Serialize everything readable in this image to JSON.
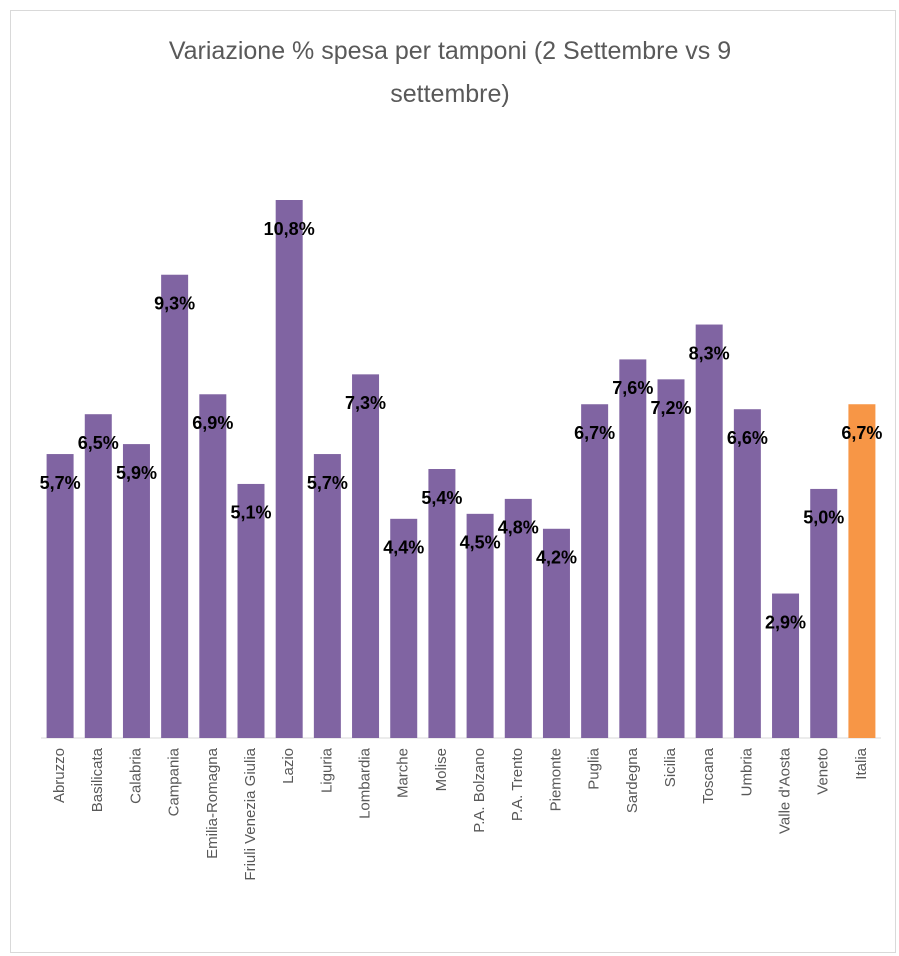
{
  "chart_data": {
    "type": "bar",
    "title": "Variazione % spesa per tamponi (2 Settembre vs 9 settembre)",
    "categories": [
      "Abruzzo",
      "Basilicata",
      "Calabria",
      "Campania",
      "Emilia-Romagna",
      "Friuli Venezia Giulia",
      "Lazio",
      "Liguria",
      "Lombardia",
      "Marche",
      "Molise",
      "P.A. Bolzano",
      "P.A. Trento",
      "Piemonte",
      "Puglia",
      "Sardegna",
      "Sicilia",
      "Toscana",
      "Umbria",
      "Valle d'Aosta",
      "Veneto",
      "Italia"
    ],
    "values": [
      5.7,
      6.5,
      5.9,
      9.3,
      6.9,
      5.1,
      10.8,
      5.7,
      7.3,
      4.4,
      5.4,
      4.5,
      4.8,
      4.2,
      6.7,
      7.6,
      7.2,
      8.3,
      6.6,
      2.9,
      5.0,
      6.7
    ],
    "value_labels": [
      "5,7%",
      "6,5%",
      "5,9%",
      "9,3%",
      "6,9%",
      "5,1%",
      "10,8%",
      "5,7%",
      "7,3%",
      "4,4%",
      "5,4%",
      "4,5%",
      "4,8%",
      "4,2%",
      "6,7%",
      "7,6%",
      "7,2%",
      "8,3%",
      "6,6%",
      "2,9%",
      "5,0%",
      "6,7%"
    ],
    "colors": [
      "#8064a2",
      "#8064a2",
      "#8064a2",
      "#8064a2",
      "#8064a2",
      "#8064a2",
      "#8064a2",
      "#8064a2",
      "#8064a2",
      "#8064a2",
      "#8064a2",
      "#8064a2",
      "#8064a2",
      "#8064a2",
      "#8064a2",
      "#8064a2",
      "#8064a2",
      "#8064a2",
      "#8064a2",
      "#8064a2",
      "#8064a2",
      "#f79646"
    ]
  }
}
